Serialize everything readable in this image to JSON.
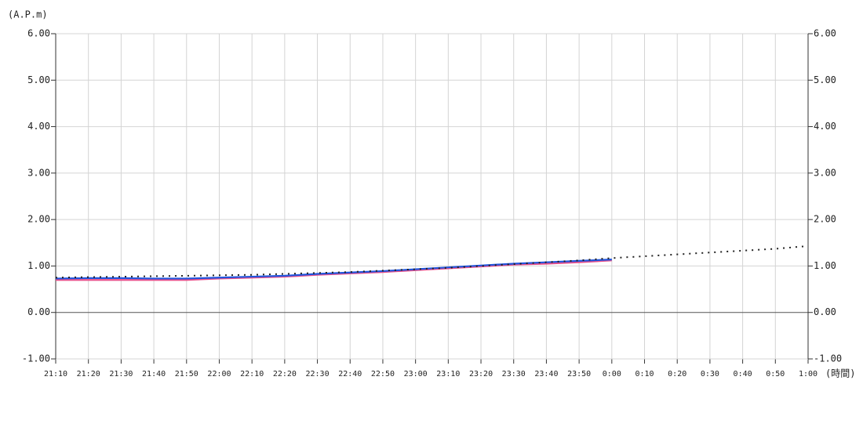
{
  "chart_data": {
    "type": "line",
    "y_label": "(A.P.m)",
    "x_label": "(時間)",
    "x": [
      "21:10",
      "21:20",
      "21:30",
      "21:40",
      "21:50",
      "22:00",
      "22:10",
      "22:20",
      "22:30",
      "22:40",
      "22:50",
      "23:00",
      "23:10",
      "23:20",
      "23:30",
      "23:40",
      "23:50",
      "0:00",
      "0:10",
      "0:20",
      "0:30",
      "0:40",
      "0:50",
      "1:00"
    ],
    "series": [
      {
        "color": "#222222",
        "style": "dotted",
        "values": [
          0.75,
          0.76,
          0.77,
          0.78,
          0.79,
          0.8,
          0.81,
          0.83,
          0.85,
          0.87,
          0.9,
          0.93,
          0.96,
          1.0,
          1.04,
          1.08,
          1.12,
          1.17,
          1.21,
          1.25,
          1.29,
          1.33,
          1.37,
          1.43
        ]
      },
      {
        "color": "#2255dd",
        "style": "solid",
        "values": [
          0.73,
          0.74,
          0.74,
          0.73,
          0.73,
          0.75,
          0.77,
          0.79,
          0.83,
          0.86,
          0.89,
          0.93,
          0.97,
          1.01,
          1.05,
          1.08,
          1.11,
          1.14,
          null,
          null,
          null,
          null,
          null,
          null
        ]
      },
      {
        "color": "#e8508a",
        "style": "solid",
        "values": [
          0.7,
          0.7,
          0.7,
          0.7,
          0.7,
          0.73,
          0.75,
          0.77,
          0.81,
          0.84,
          0.87,
          0.91,
          0.95,
          0.99,
          1.03,
          1.05,
          1.08,
          1.12,
          null,
          null,
          null,
          null,
          null,
          null
        ]
      }
    ],
    "ylim": [
      -1,
      6
    ],
    "yticks": [
      {
        "value": -1,
        "label": "-1.00"
      },
      {
        "value": 0,
        "label": "0.00"
      },
      {
        "value": 1,
        "label": "1.00"
      },
      {
        "value": 2,
        "label": "2.00"
      },
      {
        "value": 3,
        "label": "3.00"
      },
      {
        "value": 4,
        "label": "4.00"
      },
      {
        "value": 5,
        "label": "5.00"
      },
      {
        "value": 6,
        "label": "6.00"
      }
    ],
    "grid": true
  }
}
